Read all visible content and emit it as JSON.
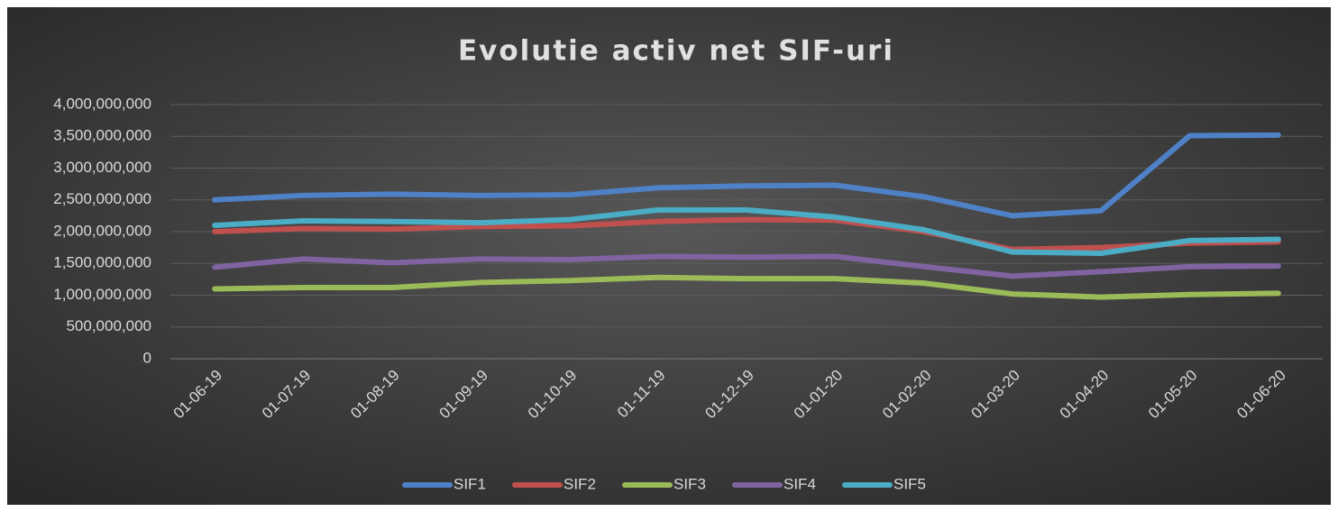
{
  "chart_data": {
    "type": "line",
    "title": "Evolutie activ net SIF-uri",
    "categories": [
      "01-06-19",
      "01-07-19",
      "01-08-19",
      "01-09-19",
      "01-10-19",
      "01-11-19",
      "01-12-19",
      "01-01-20",
      "01-02-20",
      "01-03-20",
      "01-04-20",
      "01-05-20",
      "01-06-20"
    ],
    "series": [
      {
        "name": "SIF1",
        "color": "#4f81c7",
        "values": [
          2500000000,
          2570000000,
          2590000000,
          2570000000,
          2580000000,
          2690000000,
          2720000000,
          2730000000,
          2550000000,
          2250000000,
          2330000000,
          3510000000,
          3520000000
        ]
      },
      {
        "name": "SIF2",
        "color": "#c0504d",
        "values": [
          2000000000,
          2050000000,
          2040000000,
          2080000000,
          2090000000,
          2160000000,
          2190000000,
          2180000000,
          2000000000,
          1720000000,
          1750000000,
          1820000000,
          1840000000
        ]
      },
      {
        "name": "SIF3",
        "color": "#9bbb59",
        "values": [
          1100000000,
          1120000000,
          1120000000,
          1200000000,
          1230000000,
          1280000000,
          1260000000,
          1260000000,
          1190000000,
          1020000000,
          970000000,
          1010000000,
          1030000000
        ]
      },
      {
        "name": "SIF4",
        "color": "#8064a2",
        "values": [
          1440000000,
          1570000000,
          1510000000,
          1570000000,
          1560000000,
          1610000000,
          1600000000,
          1610000000,
          1450000000,
          1300000000,
          1370000000,
          1450000000,
          1460000000
        ]
      },
      {
        "name": "SIF5",
        "color": "#4bacc6",
        "values": [
          2100000000,
          2170000000,
          2160000000,
          2140000000,
          2190000000,
          2340000000,
          2340000000,
          2230000000,
          2030000000,
          1680000000,
          1660000000,
          1860000000,
          1880000000
        ]
      }
    ],
    "ylim": [
      0,
      4000000000
    ],
    "yticks": [
      0,
      {
        "value": 500000000,
        "label": "500,000,000"
      },
      {
        "value": 1000000000,
        "label": "1,000,000,000"
      },
      {
        "value": 1500000000,
        "label": "1,500,000,000"
      },
      {
        "value": 2000000000,
        "label": "2,000,000,000"
      },
      {
        "value": 2500000000,
        "label": "2,500,000,000"
      },
      {
        "value": 3000000000,
        "label": "3,000,000,000"
      },
      {
        "value": 3500000000,
        "label": "3,500,000,000"
      },
      {
        "value": 4000000000,
        "label": "4,000,000,000"
      }
    ],
    "grid": true,
    "legend": "bottom"
  }
}
